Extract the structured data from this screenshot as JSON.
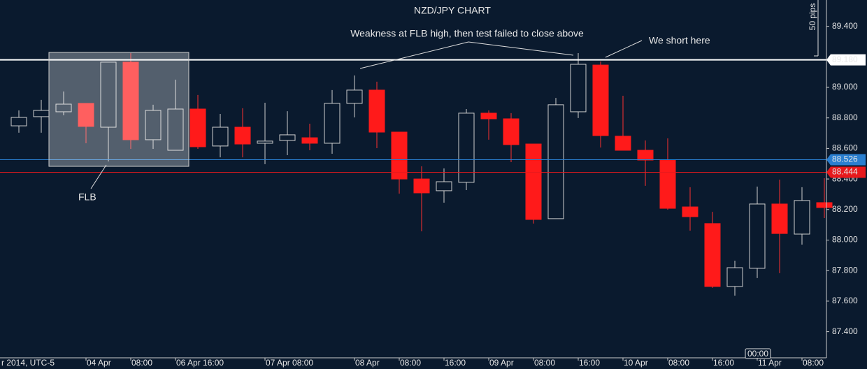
{
  "chart_data": {
    "type": "candlestick",
    "title": "NZD/JPY CHART",
    "date_label": "r 2014, UTC-5",
    "scale_label": "50 pips",
    "cursor_label": "00:00",
    "categories": [
      null,
      null,
      null,
      "04 Apr",
      null,
      "08:00",
      null,
      "06 Apr 16:00",
      null,
      null,
      null,
      "07 Apr 08:00",
      null,
      null,
      null,
      "08 Apr",
      null,
      "08:00",
      null,
      "16:00",
      null,
      "09 Apr",
      null,
      "08:00",
      null,
      "16:00",
      null,
      "10 Apr",
      null,
      "08:00",
      null,
      "16:00",
      null,
      "11 Apr",
      null,
      "08:00",
      null
    ],
    "open": [
      88.748,
      88.808,
      88.84,
      88.895,
      88.739,
      89.165,
      88.657,
      88.588,
      88.858,
      88.616,
      88.739,
      88.634,
      88.652,
      88.67,
      88.634,
      88.895,
      88.982,
      88.707,
      88.4,
      88.323,
      88.378,
      88.831,
      88.794,
      88.629,
      88.14,
      88.84,
      89.146,
      88.68,
      88.588,
      88.524,
      88.217,
      88.108,
      87.696,
      87.815,
      88.236,
      88.039,
      88.245
    ],
    "high": [
      88.849,
      88.918,
      88.973,
      88.895,
      89.165,
      89.224,
      88.886,
      89.05,
      88.95,
      88.826,
      88.863,
      88.899,
      88.844,
      88.762,
      88.982,
      89.078,
      89.037,
      88.707,
      88.483,
      88.469,
      88.858,
      88.849,
      88.831,
      88.629,
      88.931,
      89.224,
      89.169,
      88.945,
      88.652,
      88.666,
      88.346,
      88.185,
      87.865,
      88.35,
      88.396,
      88.346,
      88.405
    ],
    "low": [
      88.703,
      88.703,
      88.817,
      88.634,
      88.515,
      88.597,
      88.597,
      88.588,
      88.597,
      88.542,
      88.542,
      88.497,
      88.556,
      88.588,
      88.565,
      88.803,
      88.602,
      88.304,
      88.057,
      88.245,
      88.327,
      88.657,
      88.51,
      88.108,
      88.14,
      88.799,
      88.606,
      88.588,
      88.355,
      88.199,
      88.062,
      87.687,
      87.636,
      87.751,
      87.783,
      87.97,
      88.144
    ],
    "close": [
      88.803,
      88.849,
      88.89,
      88.744,
      89.165,
      88.657,
      88.849,
      88.858,
      88.611,
      88.739,
      88.629,
      88.648,
      88.689,
      88.634,
      88.895,
      88.982,
      88.707,
      88.4,
      88.309,
      88.382,
      88.831,
      88.794,
      88.625,
      88.135,
      88.886,
      89.151,
      88.684,
      88.588,
      88.524,
      88.208,
      88.153,
      87.696,
      87.819,
      88.236,
      88.043,
      88.259,
      88.213
    ],
    "up_color": "#0a1a2e",
    "down_color": "#ff1a1a",
    "ylim": [
      87.238,
      89.572
    ],
    "yticks": [
      {
        "value": 89.4,
        "label": "89.400"
      },
      {
        "value": 89.0,
        "label": "89.000"
      },
      {
        "value": 88.8,
        "label": "88.800"
      },
      {
        "value": 88.6,
        "label": "88.600"
      },
      {
        "value": 88.4,
        "label": "88.400"
      },
      {
        "value": 88.2,
        "label": "88.200"
      },
      {
        "value": 88.0,
        "label": "88.000"
      },
      {
        "value": 87.8,
        "label": "87.800"
      },
      {
        "value": 87.6,
        "label": "87.600"
      },
      {
        "value": 87.4,
        "label": "87.400"
      }
    ],
    "levels": [
      {
        "value": 89.18,
        "label": "89.180",
        "color": "#ffffff"
      },
      {
        "value": 88.526,
        "label": "88.526",
        "color": "#2a7fd0"
      },
      {
        "value": 88.444,
        "label": "88.444",
        "color": "#e8191c"
      }
    ],
    "annotations": {
      "weakness": "Weakness at FLB high, then test failed to close above",
      "short": "We short here",
      "flb": "FLB"
    }
  }
}
